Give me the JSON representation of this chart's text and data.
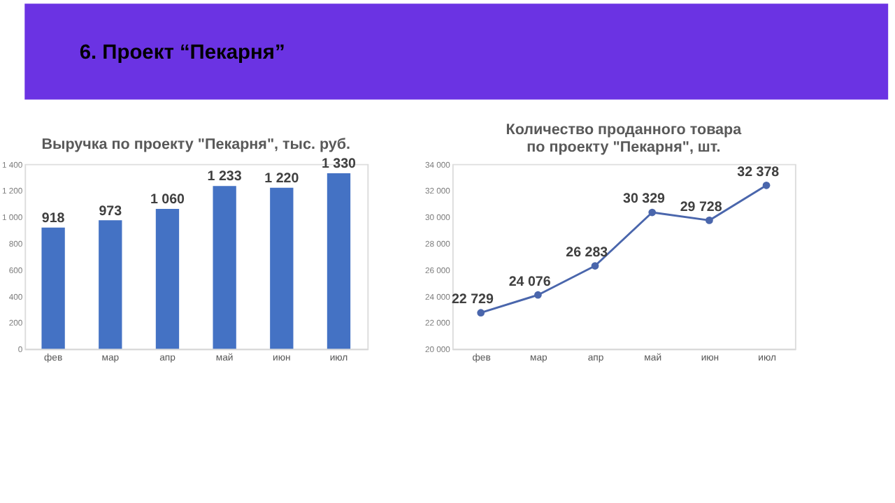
{
  "chart_data": [
    {
      "type": "bar",
      "title": "Выручка по проекту \"Пекарня\", тыс. руб.",
      "annotations": [
        "6. Проект “Пекарня”"
      ],
      "categories": [
        "фев",
        "мар",
        "апр",
        "май",
        "июн",
        "июл"
      ],
      "values": [
        918,
        973,
        1060,
        1233,
        1220,
        1330
      ],
      "color": "#4472c4",
      "value_labels": [
        "918",
        "973",
        "1 060",
        "1 233",
        "1 220",
        "1 330"
      ],
      "ylim": [
        0,
        1400
      ],
      "yticks": [
        0,
        200,
        400,
        600,
        800,
        {
          "value": 1000,
          "label": "1 000"
        },
        {
          "value": 1200,
          "label": "1 200"
        },
        {
          "value": 1400,
          "label": "1 400"
        }
      ],
      "grid": false
    },
    {
      "type": "line",
      "title": "Количество проданного товара по проекту \"Пекарня\", шт.",
      "categories": [
        "фев",
        "мар",
        "апр",
        "май",
        "июн",
        "июл"
      ],
      "values": [
        22729,
        24076,
        26283,
        30329,
        29728,
        32378
      ],
      "color": "#4a66ac",
      "value_labels": [
        "22 729",
        "24 076",
        "26 283",
        "30 329",
        "29 728",
        "32 378"
      ],
      "ylim": [
        20000,
        34000
      ],
      "yticks": [
        {
          "value": 20000,
          "label": "20 000"
        },
        {
          "value": 22000,
          "label": "22 000"
        },
        {
          "value": 24000,
          "label": "24 000"
        },
        {
          "value": 26000,
          "label": "26 000"
        },
        {
          "value": 28000,
          "label": "28 000"
        },
        {
          "value": 30000,
          "label": "30 000"
        },
        {
          "value": 32000,
          "label": "32 000"
        },
        {
          "value": 34000,
          "label": "34 000"
        }
      ],
      "grid": false,
      "marker": "circle",
      "line_style": "solid"
    }
  ]
}
